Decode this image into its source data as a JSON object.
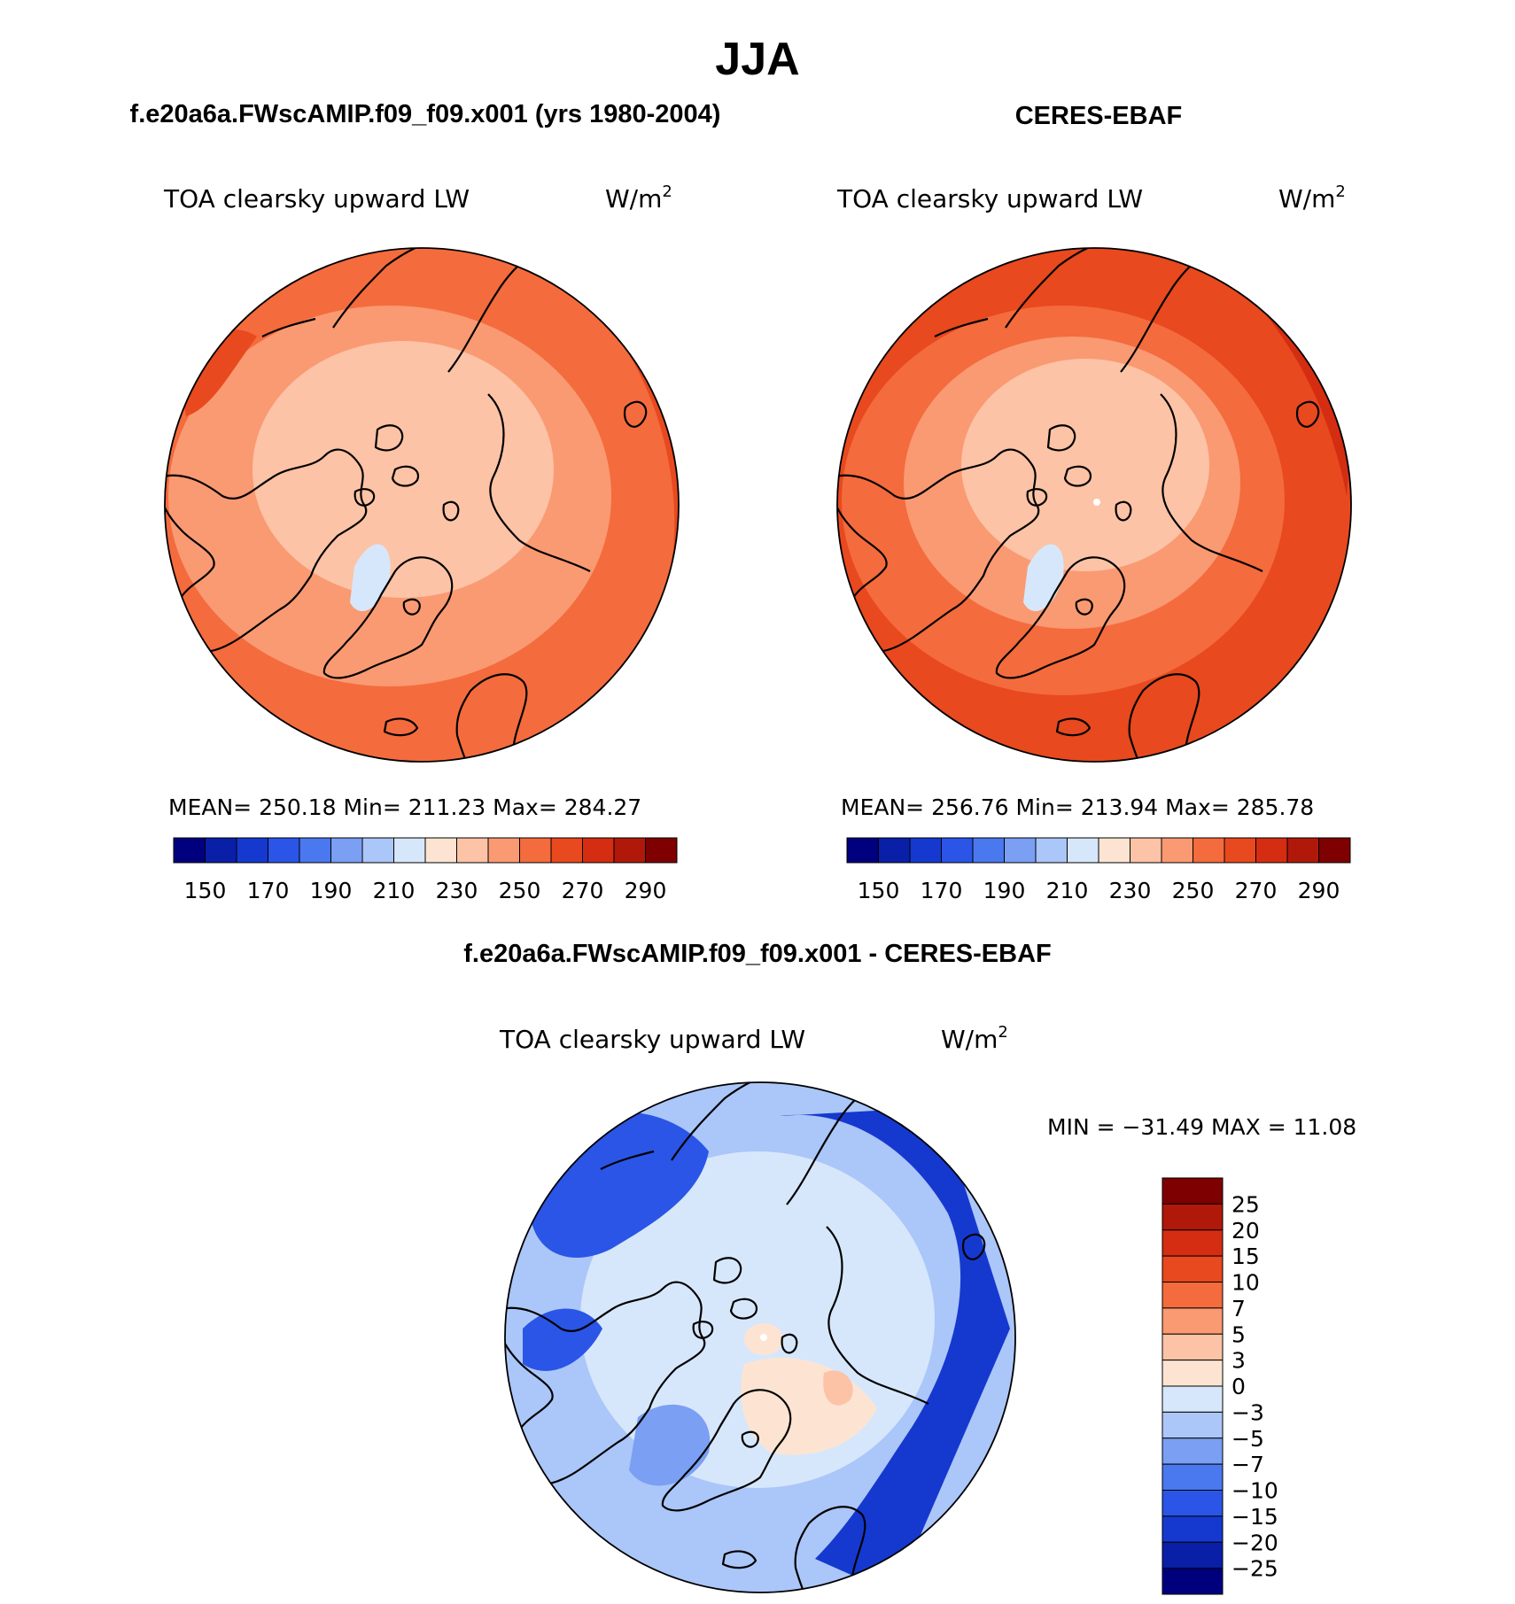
{
  "figure": {
    "season": "JJA"
  },
  "panels": [
    {
      "id": "model",
      "header": "f.e20a6a.FWscAMIP.f09_f09.x001 (yrs 1980-2004)",
      "variable": "TOA clearsky upward LW",
      "units_base": "W/m",
      "units_exp": "2",
      "stats": "MEAN= 250.18   Min= 211.23   Max= 284.27"
    },
    {
      "id": "obs",
      "header": "CERES-EBAF",
      "variable": "TOA clearsky upward LW",
      "units_base": "W/m",
      "units_exp": "2",
      "stats": "MEAN= 256.76   Min= 213.94   Max= 285.78"
    },
    {
      "id": "diff",
      "header": "f.e20a6a.FWscAMIP.f09_f09.x001 - CERES-EBAF",
      "variable": "TOA clearsky upward LW",
      "units_base": "W/m",
      "units_exp": "2",
      "stats": "MIN =  −31.49  MAX =   11.08"
    }
  ],
  "chart_data": {
    "type": "map",
    "projection": "north polar stereographic",
    "season": "JJA",
    "variable": "TOA clearsky upward LW",
    "units": "W/m^2",
    "abs_colorbar": {
      "labels": [
        "150",
        "170",
        "190",
        "210",
        "230",
        "250",
        "270",
        "290"
      ],
      "colors": [
        "#00007e",
        "#0a1fa8",
        "#1539cf",
        "#2a55e6",
        "#4a78ee",
        "#7a9ff3",
        "#abc6f8",
        "#d7e7fb",
        "#fde4d2",
        "#fcc3a6",
        "#fa9a72",
        "#f46b3d",
        "#e8491e",
        "#d42d12",
        "#b0190a",
        "#7f0000"
      ]
    },
    "diff_colorbar": {
      "labels": [
        "25",
        "20",
        "15",
        "10",
        "7",
        "5",
        "3",
        "0",
        "−3",
        "−5",
        "−7",
        "−10",
        "−15",
        "−20",
        "−25"
      ],
      "colors": [
        "#7f0000",
        "#b0190a",
        "#d42d12",
        "#e8491e",
        "#f46b3d",
        "#fa9a72",
        "#fcc3a6",
        "#fde4d2",
        "#d7e7fb",
        "#abc6f8",
        "#7a9ff3",
        "#4a78ee",
        "#2a55e6",
        "#1539cf",
        "#0a1fa8",
        "#00007e"
      ]
    },
    "series": [
      {
        "name": "f.e20a6a.FWscAMIP.f09_f09.x001",
        "mean": 250.18,
        "min": 211.23,
        "max": 284.27
      },
      {
        "name": "CERES-EBAF",
        "mean": 256.76,
        "min": 213.94,
        "max": 285.78
      },
      {
        "name": "f.e20a6a.FWscAMIP.f09_f09.x001 - CERES-EBAF",
        "min": -31.49,
        "max": 11.08
      }
    ]
  }
}
